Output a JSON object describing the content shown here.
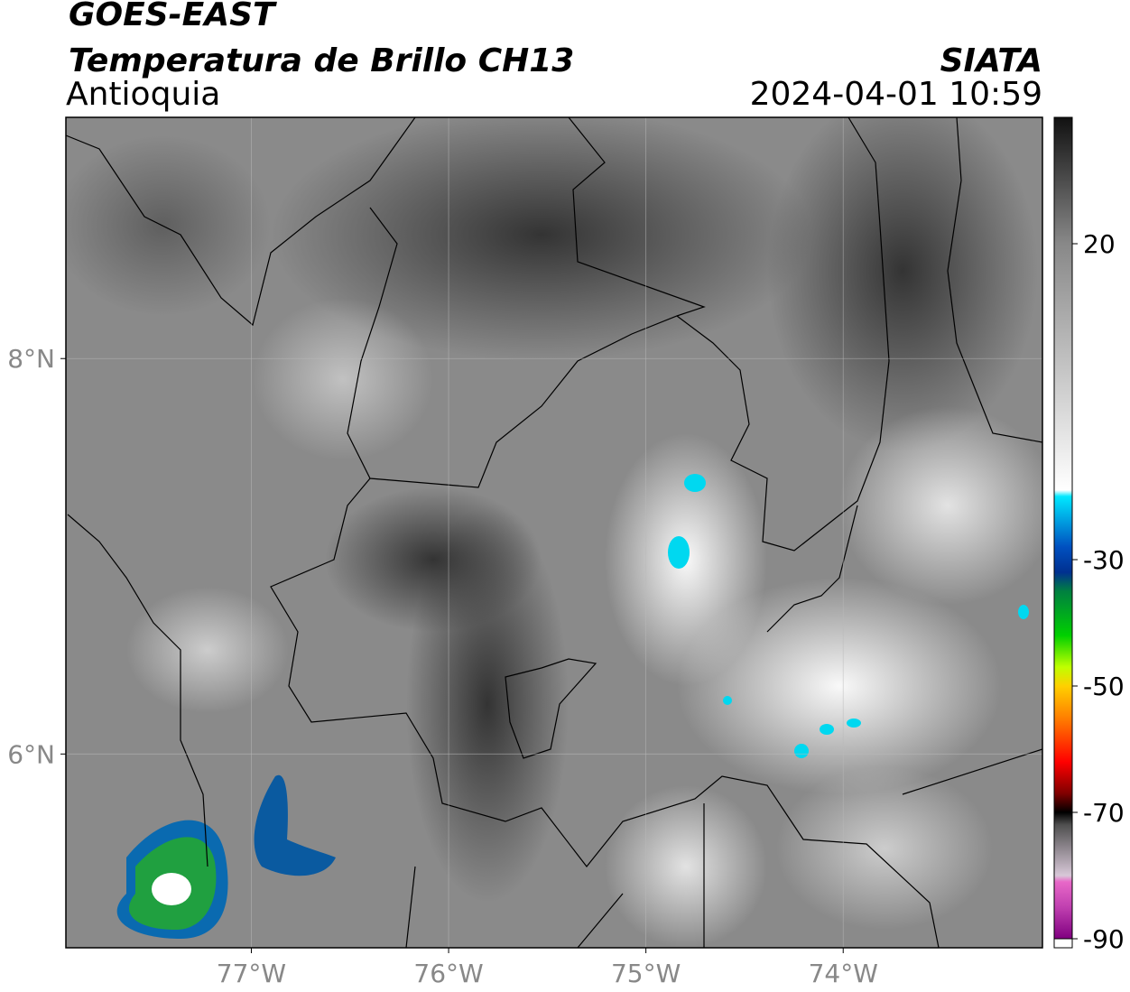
{
  "header": {
    "title": "GOES-EAST",
    "subtitle": "Temperatura de Brillo CH13",
    "region": "Antioquia",
    "source": "SIATA",
    "datetime": "2024-04-01 10:59"
  },
  "map": {
    "xlim": [
      -77.94,
      -72.99
    ],
    "ylim": [
      5.02,
      9.22
    ],
    "xticks": [
      {
        "value": -77,
        "label": "77°W"
      },
      {
        "value": -76,
        "label": "76°W"
      },
      {
        "value": -75,
        "label": "75°W"
      },
      {
        "value": -74,
        "label": "74°W"
      }
    ],
    "yticks": [
      {
        "value": 6,
        "label": "6°N"
      },
      {
        "value": 8,
        "label": "8°N"
      }
    ],
    "grid": true
  },
  "colorbar": {
    "lim": [
      -90,
      40
    ],
    "ticks": [
      -90,
      -70,
      -50,
      -30,
      20
    ],
    "colormap": [
      {
        "value": -90,
        "color": "#800080"
      },
      {
        "value": -85,
        "color": "#c040b0"
      },
      {
        "value": -81,
        "color": "#e868c8"
      },
      {
        "value": -80,
        "color": "#d8c8d8"
      },
      {
        "value": -72,
        "color": "#505050"
      },
      {
        "value": -70,
        "color": "#000000"
      },
      {
        "value": -67,
        "color": "#800000"
      },
      {
        "value": -62,
        "color": "#ff0000"
      },
      {
        "value": -55,
        "color": "#ff8000"
      },
      {
        "value": -50,
        "color": "#ffd000"
      },
      {
        "value": -47,
        "color": "#c0ff00"
      },
      {
        "value": -42,
        "color": "#00d000"
      },
      {
        "value": -35,
        "color": "#008040"
      },
      {
        "value": -32,
        "color": "#003090"
      },
      {
        "value": -28,
        "color": "#0050c0"
      },
      {
        "value": -20,
        "color": "#00e8ff"
      },
      {
        "value": -19,
        "color": "#ffffff"
      },
      {
        "value": 20,
        "color": "#888888"
      },
      {
        "value": 40,
        "color": "#111111"
      }
    ]
  }
}
